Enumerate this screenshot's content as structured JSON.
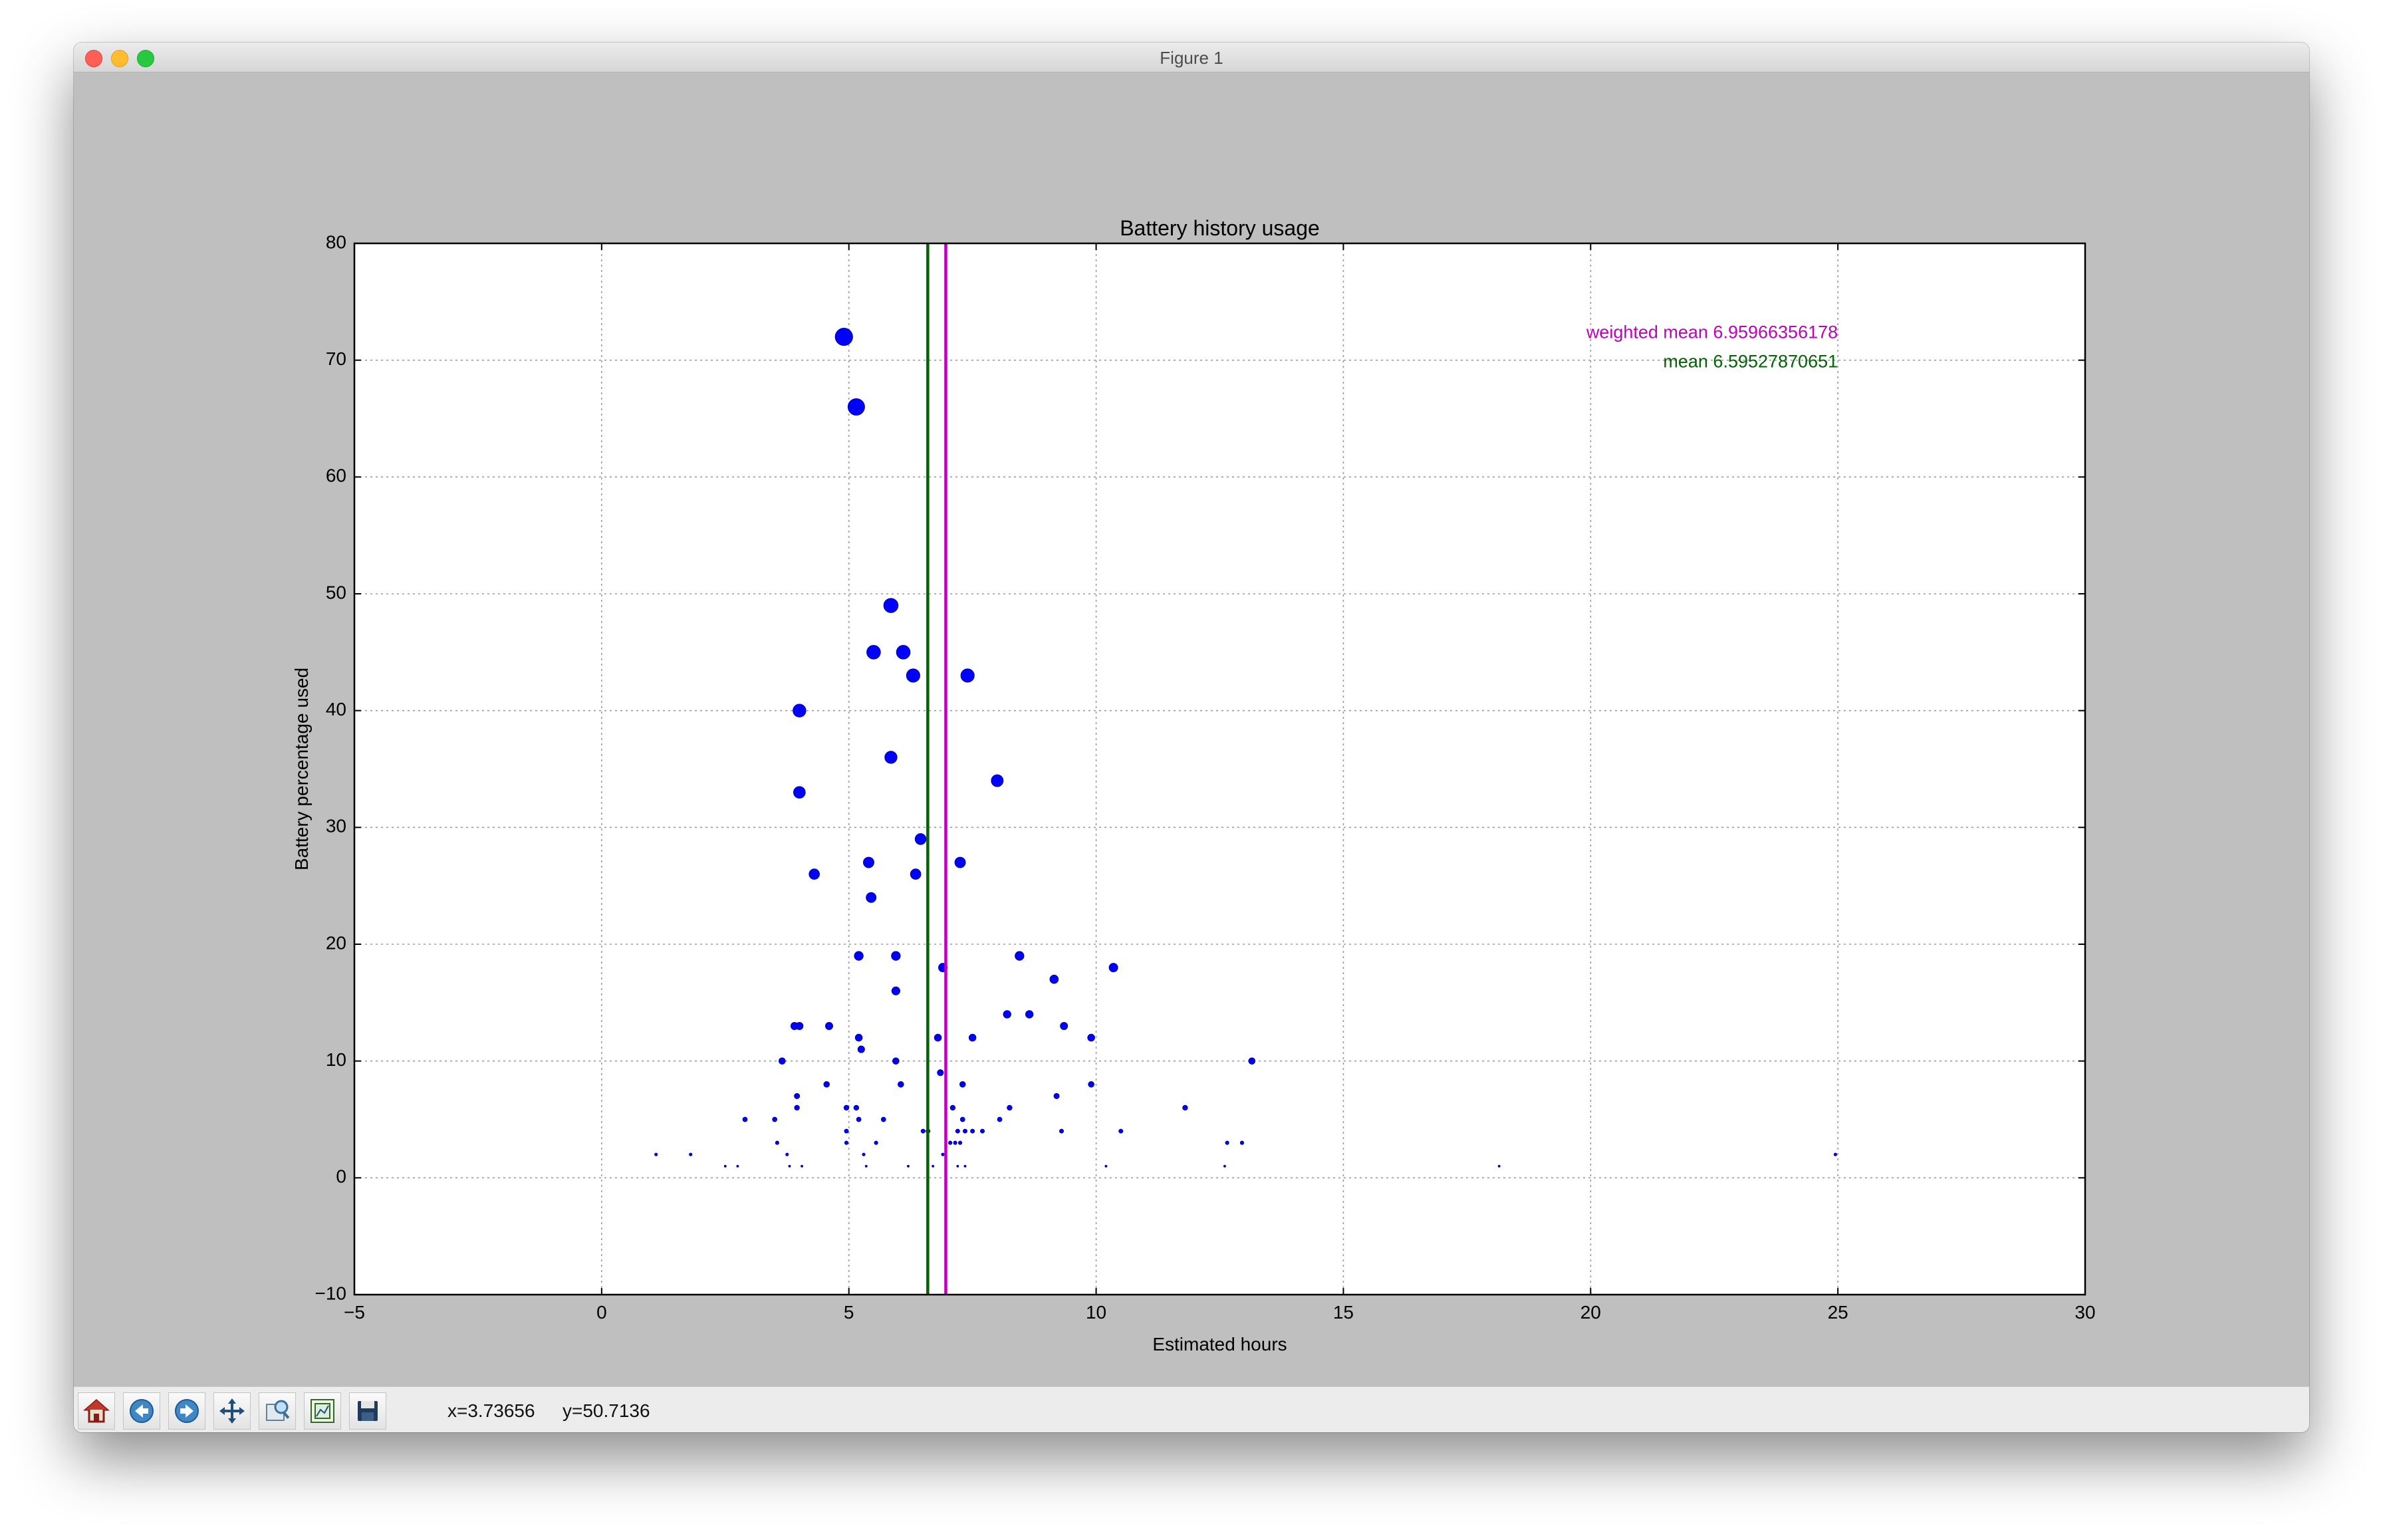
{
  "window": {
    "title": "Figure 1"
  },
  "toolbar": {
    "buttons": [
      "home-icon",
      "back-icon",
      "forward-icon",
      "pan-icon",
      "zoom-icon",
      "configure-subplots-icon",
      "save-icon"
    ],
    "x_readout": "x=3.73656",
    "y_readout": "y=50.7136"
  },
  "colors": {
    "points": "#0000ff",
    "mean_line": "#006400",
    "weighted_mean_line": "#bf00bf"
  },
  "chart_data": {
    "type": "scatter",
    "title": "Battery history usage",
    "xlabel": "Estimated hours",
    "ylabel": "Battery percentage used",
    "xlim": [
      -5,
      30
    ],
    "ylim": [
      -10,
      80
    ],
    "xticks": [
      -5,
      0,
      5,
      10,
      15,
      20,
      25,
      30
    ],
    "yticks": [
      -10,
      0,
      10,
      20,
      30,
      40,
      50,
      60,
      70,
      80
    ],
    "grid": true,
    "size_encodes": "y",
    "points": [
      [
        4.9,
        72
      ],
      [
        5.15,
        66
      ],
      [
        5.85,
        49
      ],
      [
        5.5,
        45
      ],
      [
        6.1,
        45
      ],
      [
        6.3,
        43
      ],
      [
        7.4,
        43
      ],
      [
        4.0,
        40
      ],
      [
        5.85,
        36
      ],
      [
        8.0,
        34
      ],
      [
        4.0,
        33
      ],
      [
        6.45,
        29
      ],
      [
        4.3,
        26
      ],
      [
        5.4,
        27
      ],
      [
        6.35,
        26
      ],
      [
        7.25,
        27
      ],
      [
        5.45,
        24
      ],
      [
        5.2,
        19
      ],
      [
        5.95,
        19
      ],
      [
        6.9,
        18
      ],
      [
        8.45,
        19
      ],
      [
        10.35,
        18
      ],
      [
        9.15,
        17
      ],
      [
        5.95,
        16
      ],
      [
        8.2,
        14
      ],
      [
        8.65,
        14
      ],
      [
        9.35,
        13
      ],
      [
        9.9,
        12
      ],
      [
        3.9,
        13
      ],
      [
        4.0,
        13
      ],
      [
        4.6,
        13
      ],
      [
        5.2,
        12
      ],
      [
        5.25,
        11
      ],
      [
        6.8,
        12
      ],
      [
        7.5,
        12
      ],
      [
        3.65,
        10
      ],
      [
        5.95,
        10
      ],
      [
        13.15,
        10
      ],
      [
        6.85,
        9
      ],
      [
        4.55,
        8
      ],
      [
        6.05,
        8
      ],
      [
        7.3,
        8
      ],
      [
        9.9,
        8
      ],
      [
        3.95,
        7
      ],
      [
        9.2,
        7
      ],
      [
        3.95,
        6
      ],
      [
        4.95,
        6
      ],
      [
        5.15,
        6
      ],
      [
        7.1,
        6
      ],
      [
        8.25,
        6
      ],
      [
        11.8,
        6
      ],
      [
        2.9,
        5
      ],
      [
        3.5,
        5
      ],
      [
        5.2,
        5
      ],
      [
        5.7,
        5
      ],
      [
        7.3,
        5
      ],
      [
        8.05,
        5
      ],
      [
        4.95,
        4
      ],
      [
        6.5,
        4
      ],
      [
        6.6,
        4
      ],
      [
        7.2,
        4
      ],
      [
        7.35,
        4
      ],
      [
        7.5,
        4
      ],
      [
        7.7,
        4
      ],
      [
        9.3,
        4
      ],
      [
        10.5,
        4
      ],
      [
        3.55,
        3
      ],
      [
        4.95,
        3
      ],
      [
        5.55,
        3
      ],
      [
        7.05,
        3
      ],
      [
        7.15,
        3
      ],
      [
        7.25,
        3
      ],
      [
        12.65,
        3
      ],
      [
        12.95,
        3
      ],
      [
        1.1,
        2
      ],
      [
        1.8,
        2
      ],
      [
        3.75,
        2
      ],
      [
        5.3,
        2
      ],
      [
        6.9,
        2
      ],
      [
        24.95,
        2
      ],
      [
        2.5,
        1
      ],
      [
        2.75,
        1
      ],
      [
        3.8,
        1
      ],
      [
        4.05,
        1
      ],
      [
        5.35,
        1
      ],
      [
        6.2,
        1
      ],
      [
        6.7,
        1
      ],
      [
        7.2,
        1
      ],
      [
        7.35,
        1
      ],
      [
        10.2,
        1
      ],
      [
        12.6,
        1
      ],
      [
        18.15,
        1
      ]
    ],
    "vlines": [
      {
        "name": "mean",
        "x": 6.59527870651,
        "color": "#006400"
      },
      {
        "name": "weighted mean",
        "x": 6.95966356178,
        "color": "#bf00bf"
      }
    ],
    "annotations": [
      {
        "text": "weighted mean 6.95966356178",
        "color": "#bf00bf",
        "x": 25,
        "y": 72.3
      },
      {
        "text": "mean 6.59527870651",
        "color": "#006400",
        "x": 25,
        "y": 69.8
      }
    ]
  }
}
